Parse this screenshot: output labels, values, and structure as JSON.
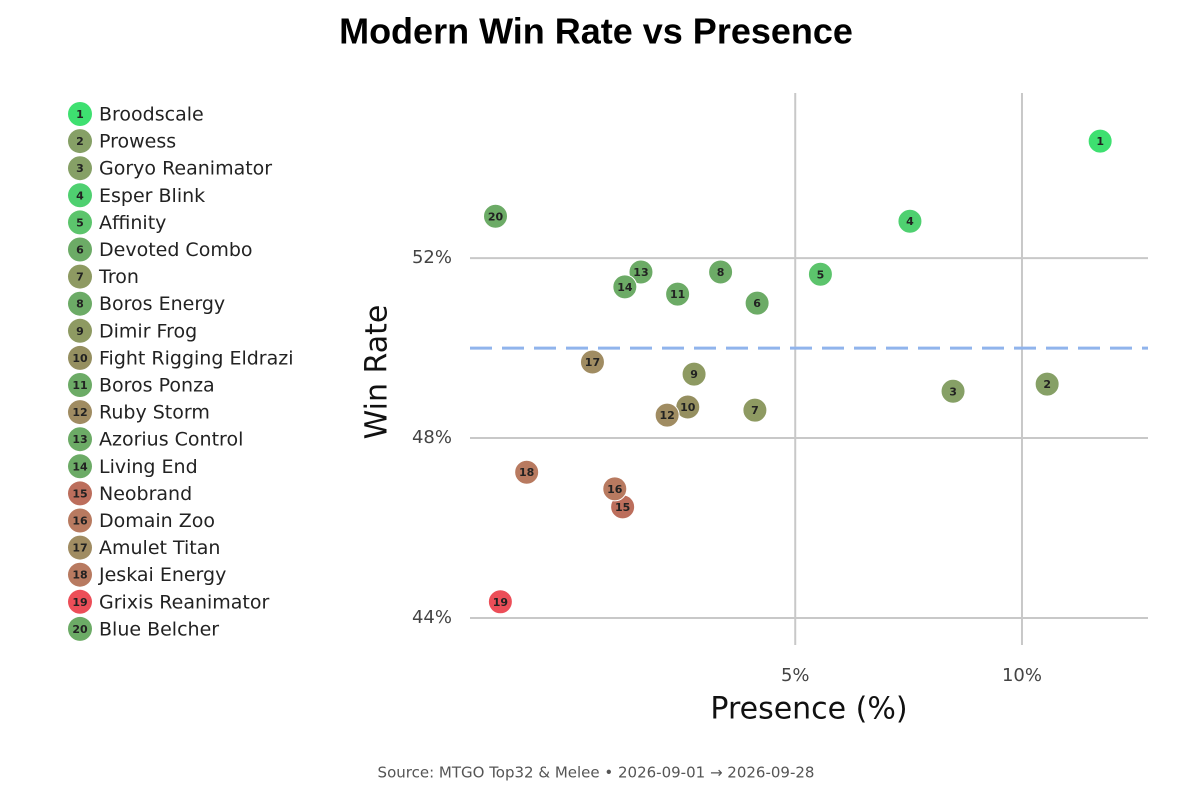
{
  "chart_data": {
    "type": "scatter",
    "title": "Modern Win Rate vs Presence",
    "xlabel": "Presence (%)",
    "ylabel": "Win Rate",
    "footer": "Source: MTGO Top32 & Melee  •  2026-09-01 → 2026-09-28",
    "log_x": true,
    "grid": true,
    "legend": "left",
    "names": [
      "Broodscale",
      "Prowess",
      "Goryo Reanimator",
      "Esper Blink",
      "Affinity",
      "Devoted Combo",
      "Tron",
      "Boros Energy",
      "Dimir Frog",
      "Fight Rigging Eldrazi",
      "Boros Ponza",
      "Ruby Storm",
      "Azorius Control",
      "Living End",
      "Neobrand",
      "Domain Zoo",
      "Amulet Titan",
      "Jeskai Energy",
      "Grixis Reanimator",
      "Blue Belcher"
    ],
    "ids": [
      1,
      2,
      3,
      4,
      5,
      6,
      7,
      8,
      9,
      10,
      11,
      12,
      13,
      14,
      15,
      16,
      17,
      18,
      19,
      20
    ],
    "x": [
      12.7,
      10.8,
      8.1,
      7.1,
      5.4,
      4.45,
      4.42,
      3.98,
      3.67,
      3.6,
      3.49,
      3.38,
      3.12,
      2.97,
      2.95,
      2.88,
      2.69,
      2.2,
      2.03,
      2.0
    ],
    "values": [
      54.6,
      49.2,
      49.04,
      52.82,
      51.64,
      51.0,
      48.62,
      51.69,
      49.42,
      48.69,
      51.2,
      48.51,
      51.69,
      51.36,
      46.47,
      46.87,
      49.69,
      47.24,
      44.36,
      52.93
    ],
    "colors": [
      "#3ee070",
      "#86a066",
      "#86a066",
      "#4fd070",
      "#5cc46c",
      "#6cab66",
      "#8e9a62",
      "#6cab66",
      "#8e9a62",
      "#958f60",
      "#6cab66",
      "#a08c62",
      "#6cab66",
      "#6cab66",
      "#bc6e5c",
      "#b87a60",
      "#a08c62",
      "#b87a60",
      "#ec4e58",
      "#6cab66"
    ],
    "reference_y": 50,
    "reference_color": "#90b4ec",
    "xlim": [
      1.85,
      14.7
    ],
    "ylim": [
      43.4,
      55.67
    ],
    "xticks": [
      {
        "value": 5,
        "label": "5%"
      },
      {
        "value": 10,
        "label": "10%"
      }
    ],
    "yticks": [
      {
        "value": 44,
        "label": "44%"
      },
      {
        "value": 48,
        "label": "48%"
      },
      {
        "value": 52,
        "label": "52%"
      }
    ]
  }
}
